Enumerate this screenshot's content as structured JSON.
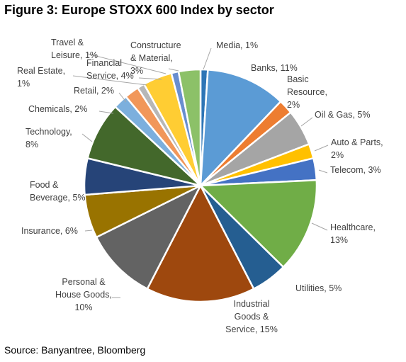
{
  "title": "Figure 3: Europe STOXX 600 Index by sector",
  "source": "Source: Banyantree, Bloomberg",
  "chart_data": {
    "type": "pie",
    "title": "Figure 3: Europe STOXX 600 Index by sector",
    "slices": [
      {
        "key": "media",
        "label": [
          "Media, 1%"
        ],
        "value": 1,
        "color": "#2e75b6"
      },
      {
        "key": "banks",
        "label": [
          "Banks, 11%"
        ],
        "value": 11,
        "color": "#5b9bd5"
      },
      {
        "key": "basic-resource",
        "label": [
          "Basic",
          "Resource,",
          "2%"
        ],
        "value": 2,
        "color": "#ed7d31"
      },
      {
        "key": "oil-gas",
        "label": [
          "Oil & Gas, 5%"
        ],
        "value": 5,
        "color": "#a5a5a5"
      },
      {
        "key": "auto-parts",
        "label": [
          "Auto & Parts,",
          "2%"
        ],
        "value": 2,
        "color": "#ffc000"
      },
      {
        "key": "telecom",
        "label": [
          "Telecom, 3%"
        ],
        "value": 3,
        "color": "#4472c4"
      },
      {
        "key": "healthcare",
        "label": [
          "Healthcare,",
          "13%"
        ],
        "value": 13,
        "color": "#70ad47"
      },
      {
        "key": "utilities",
        "label": [
          "Utilities, 5%"
        ],
        "value": 5,
        "color": "#255e91"
      },
      {
        "key": "industrial",
        "label": [
          "Industrial",
          "Goods &",
          "Service, 15%"
        ],
        "value": 15,
        "color": "#9e480e"
      },
      {
        "key": "personal-house",
        "label": [
          "Personal &",
          "House Goods,",
          "10%"
        ],
        "value": 10,
        "color": "#636363"
      },
      {
        "key": "insurance",
        "label": [
          "Insurance, 6%"
        ],
        "value": 6,
        "color": "#997300"
      },
      {
        "key": "food-beverage",
        "label": [
          "Food &",
          "Beverage, 5%"
        ],
        "value": 5,
        "color": "#264478"
      },
      {
        "key": "technology",
        "label": [
          "Technology,",
          "8%"
        ],
        "value": 8,
        "color": "#43682b"
      },
      {
        "key": "chemicals",
        "label": [
          "Chemicals, 2%"
        ],
        "value": 2,
        "color": "#7cafdd"
      },
      {
        "key": "retail",
        "label": [
          "Retail, 2%"
        ],
        "value": 2,
        "color": "#f1975a"
      },
      {
        "key": "real-estate",
        "label": [
          "Real Estate,",
          "1%"
        ],
        "value": 1,
        "color": "#b7b7b7"
      },
      {
        "key": "financial-service",
        "label": [
          "Financial",
          "Service, 4%"
        ],
        "value": 4,
        "color": "#ffcd33"
      },
      {
        "key": "travel-leisure",
        "label": [
          "Travel &",
          "Leisure, 1%"
        ],
        "value": 1,
        "color": "#698ed0"
      },
      {
        "key": "constructure-material",
        "label": [
          "Constructure",
          "& Material,",
          "3%"
        ],
        "value": 3,
        "color": "#8cc168"
      }
    ]
  }
}
